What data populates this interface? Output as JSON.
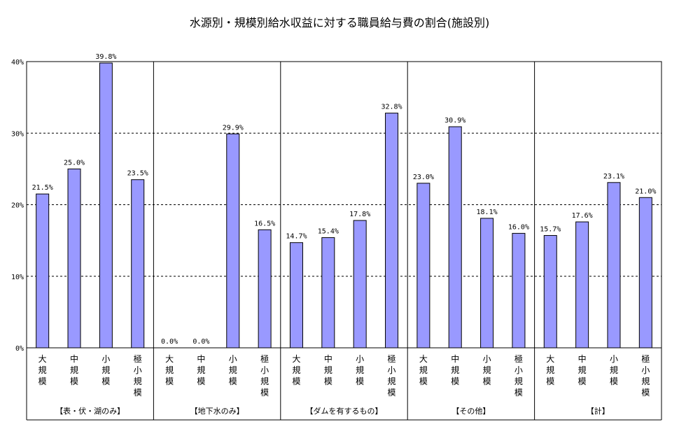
{
  "chart_data": {
    "type": "bar",
    "title": "水源別・規模別給水収益に対する職員給与費の割合(施設別)",
    "ylim": [
      0,
      40
    ],
    "yticks": [
      "0%",
      "10%",
      "20%",
      "30%",
      "40%"
    ],
    "grid": true,
    "bar_color": "#9999FF",
    "groups": [
      {
        "label": "【表・伏・湖のみ】",
        "categories": [
          "大規模",
          "中規模",
          "小規模",
          "極小規模"
        ],
        "values": [
          21.5,
          25.0,
          39.8,
          23.5
        ],
        "labels": [
          "21.5%",
          "25.0%",
          "39.8%",
          "23.5%"
        ]
      },
      {
        "label": "【地下水のみ】",
        "categories": [
          "大規模",
          "中規模",
          "小規模",
          "極小規模"
        ],
        "values": [
          0.0,
          0.0,
          29.9,
          16.5
        ],
        "labels": [
          "0.0%",
          "0.0%",
          "29.9%",
          "16.5%"
        ]
      },
      {
        "label": "【ダムを有するもの】",
        "categories": [
          "大規模",
          "中規模",
          "小規模",
          "極小規模"
        ],
        "values": [
          14.7,
          15.4,
          17.8,
          32.8
        ],
        "labels": [
          "14.7%",
          "15.4%",
          "17.8%",
          "32.8%"
        ]
      },
      {
        "label": "【その他】",
        "categories": [
          "大規模",
          "中規模",
          "小規模",
          "極小規模"
        ],
        "values": [
          23.0,
          30.9,
          18.1,
          16.0
        ],
        "labels": [
          "23.0%",
          "30.9%",
          "18.1%",
          "16.0%"
        ]
      },
      {
        "label": "【計】",
        "categories": [
          "大規模",
          "中規模",
          "小規模",
          "極小規模"
        ],
        "values": [
          15.7,
          17.6,
          23.1,
          21.0
        ],
        "labels": [
          "15.7%",
          "17.6%",
          "23.1%",
          "21.0%"
        ]
      }
    ]
  }
}
